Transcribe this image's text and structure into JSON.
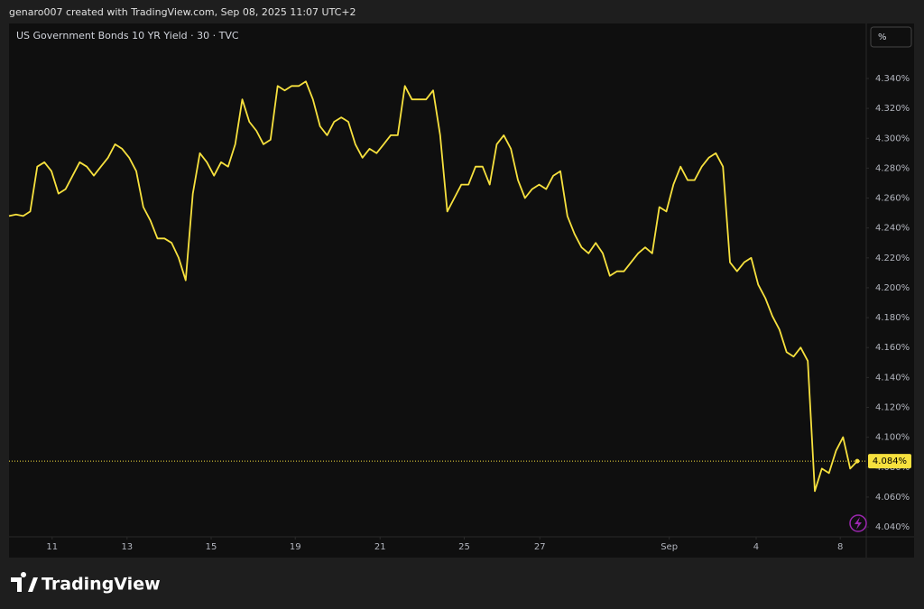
{
  "attribution": "genaro007 created with TradingView.com, Sep 08, 2025 11:07 UTC+2",
  "branding": "TradingView",
  "unit_button": "%",
  "chart_data": {
    "type": "line",
    "title": "US Government Bonds 10 YR Yield · 30 · TVC",
    "color": "#f7e13e",
    "values": [
      4.248,
      4.249,
      4.248,
      4.251,
      4.281,
      4.284,
      4.278,
      4.263,
      4.266,
      4.275,
      4.284,
      4.281,
      4.275,
      4.281,
      4.287,
      4.296,
      4.293,
      4.287,
      4.278,
      4.254,
      4.245,
      4.233,
      4.233,
      4.23,
      4.22,
      4.205,
      4.263,
      4.29,
      4.284,
      4.275,
      4.284,
      4.281,
      4.296,
      4.326,
      4.311,
      4.305,
      4.296,
      4.299,
      4.335,
      4.332,
      4.335,
      4.335,
      4.338,
      4.326,
      4.308,
      4.302,
      4.311,
      4.314,
      4.311,
      4.296,
      4.287,
      4.293,
      4.29,
      4.296,
      4.302,
      4.302,
      4.335,
      4.326,
      4.326,
      4.326,
      4.332,
      4.302,
      4.251,
      4.26,
      4.269,
      4.269,
      4.281,
      4.281,
      4.269,
      4.296,
      4.302,
      4.293,
      4.272,
      4.26,
      4.266,
      4.269,
      4.266,
      4.275,
      4.278,
      4.248,
      4.236,
      4.227,
      4.223,
      4.23,
      4.223,
      4.208,
      4.211,
      4.211,
      4.217,
      4.223,
      4.227,
      4.223,
      4.254,
      4.251,
      4.269,
      4.281,
      4.272,
      4.272,
      4.281,
      4.287,
      4.29,
      4.281,
      4.217,
      4.211,
      4.217,
      4.22,
      4.202,
      4.193,
      4.181,
      4.172,
      4.157,
      4.154,
      4.16,
      4.151,
      4.064,
      4.079,
      4.076,
      4.091,
      4.1,
      4.079,
      4.084
    ],
    "xlim": [
      0,
      120
    ],
    "xticks": [
      {
        "value": 6.1,
        "label": "11"
      },
      {
        "value": 16.7,
        "label": "13"
      },
      {
        "value": 28.6,
        "label": "15"
      },
      {
        "value": 40.5,
        "label": "19"
      },
      {
        "value": 52.5,
        "label": "21"
      },
      {
        "value": 64.4,
        "label": "25"
      },
      {
        "value": 75.1,
        "label": "27"
      },
      {
        "value": 93.4,
        "label": "Sep"
      },
      {
        "value": 105.7,
        "label": "4"
      },
      {
        "value": 117.6,
        "label": "8"
      }
    ],
    "ylim": [
      4.0334,
      4.3768
    ],
    "yticks": [
      {
        "value": 4.04,
        "label": "4.040%"
      },
      {
        "value": 4.06,
        "label": "4.060%"
      },
      {
        "value": 4.08,
        "label": "4.080%"
      },
      {
        "value": 4.1,
        "label": "4.100%"
      },
      {
        "value": 4.12,
        "label": "4.120%"
      },
      {
        "value": 4.14,
        "label": "4.140%"
      },
      {
        "value": 4.16,
        "label": "4.160%"
      },
      {
        "value": 4.18,
        "label": "4.180%"
      },
      {
        "value": 4.2,
        "label": "4.200%"
      },
      {
        "value": 4.22,
        "label": "4.220%"
      },
      {
        "value": 4.24,
        "label": "4.240%"
      },
      {
        "value": 4.26,
        "label": "4.260%"
      },
      {
        "value": 4.28,
        "label": "4.280%"
      },
      {
        "value": 4.3,
        "label": "4.300%"
      },
      {
        "value": 4.32,
        "label": "4.320%"
      },
      {
        "value": 4.34,
        "label": "4.340%"
      }
    ],
    "last_price": {
      "value": 4.084,
      "label": "4.084%"
    },
    "grid": false
  }
}
